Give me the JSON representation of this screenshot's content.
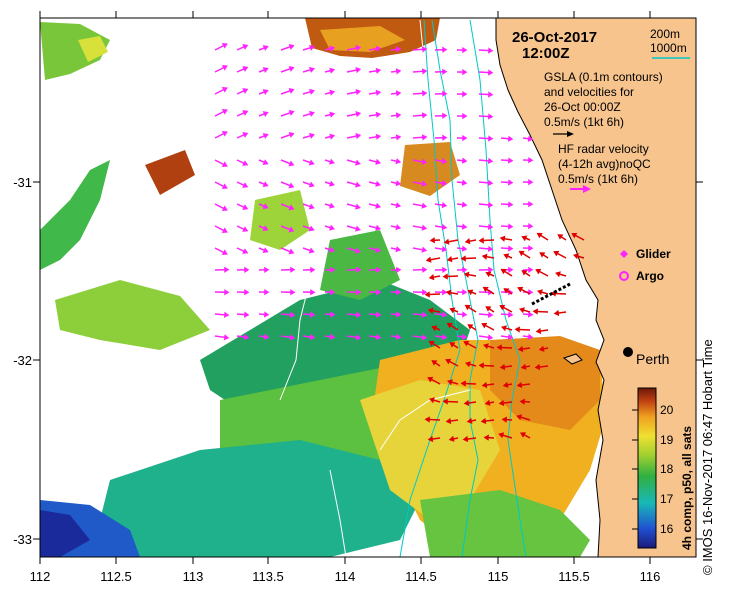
{
  "title": {
    "date": "26-Oct-2017",
    "time": "12:00Z"
  },
  "depth_legend": {
    "shallow": "200m",
    "deep": "1000m"
  },
  "gsla": {
    "line1": "GSLA (0.1m contours)",
    "line2": "and velocities for",
    "line3": "26-Oct 00:00Z",
    "scale": "0.5m/s (1kt 6h)"
  },
  "radar": {
    "line1": "HF radar velocity",
    "line2": "(4-12h avg)noQC",
    "scale": "0.5m/s (1kt 6h)"
  },
  "markers": {
    "glider": "Glider",
    "argo": "Argo",
    "city": "Perth"
  },
  "axes": {
    "x_ticks": [
      "112",
      "112.5",
      "113",
      "113.5",
      "114",
      "114.5",
      "115",
      "115.5",
      "116"
    ],
    "y_ticks": [
      "-31",
      "-32",
      "-33"
    ]
  },
  "colorbar": {
    "label": "4h comp, p50, all sats",
    "ticks": [
      "16",
      "17",
      "18",
      "19",
      "20"
    ],
    "min": 15.5,
    "max": 20.8
  },
  "credit": "© IMOS 16-Nov-2017 06:47 Hobart Time",
  "colors": {
    "land": "#f7c48e",
    "gsla_arrow": "#ff22ff",
    "radar_arrow": "#e00000",
    "contour_200m": "#00c8c8",
    "contour_1000m": "#00d0d0"
  }
}
